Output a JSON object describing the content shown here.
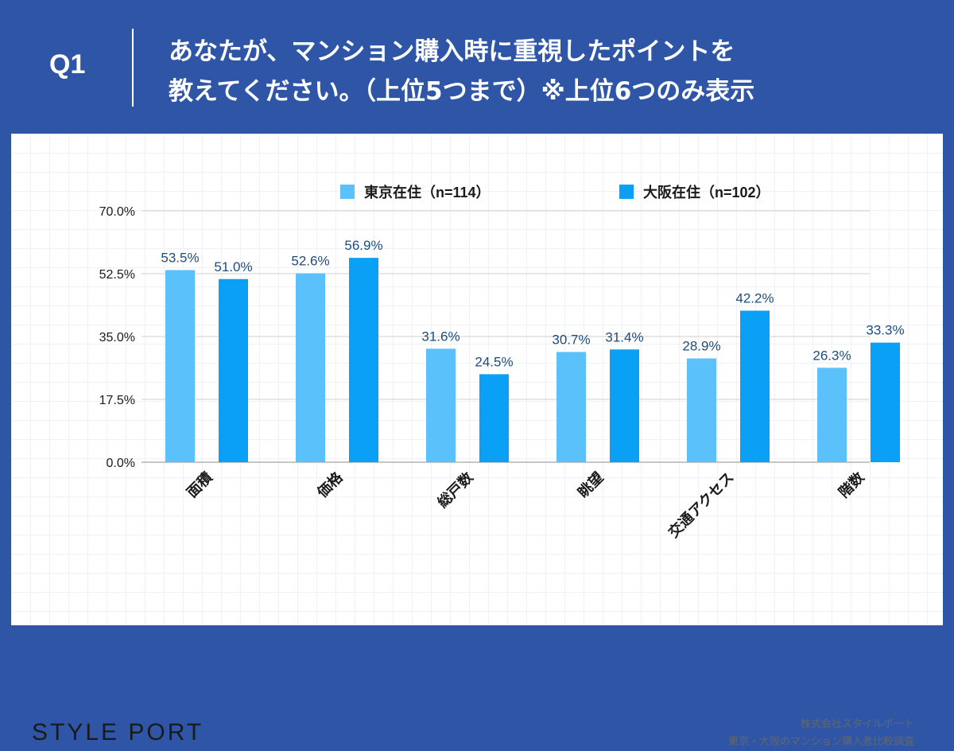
{
  "header": {
    "q_number": "Q1",
    "question_line1": "あなたが、マンション購入時に重視したポイントを",
    "question_line2": "教えてください。（上位5つまで）※上位6つのみ表示"
  },
  "footer": {
    "logo_text": "STYLE PORT",
    "credit_line1": "株式会社スタイルポート",
    "credit_line2": "東京・大阪のマンション購入者比較調査"
  },
  "colors": {
    "background": "#2f56a6",
    "tokyo": "#5bc1fb",
    "osaka": "#0aa0f5",
    "label_text": "#1e4d7a"
  },
  "chart_data": {
    "type": "bar",
    "title": "",
    "xlabel": "",
    "ylabel": "",
    "ylim": [
      0,
      70
    ],
    "yticks": [
      0,
      17.5,
      35,
      52.5,
      70
    ],
    "ytick_labels": [
      "0.0%",
      "17.5%",
      "35.0%",
      "52.5%",
      "70.0%"
    ],
    "grid": true,
    "legend_position": "top",
    "categories": [
      "面積",
      "価格",
      "総戸数",
      "眺望",
      "交通アクセス",
      "階数"
    ],
    "series": [
      {
        "name": "東京在住（n=114）",
        "values": [
          53.5,
          52.6,
          31.6,
          30.7,
          28.9,
          26.3
        ],
        "labels": [
          "53.5%",
          "52.6%",
          "31.6%",
          "30.7%",
          "28.9%",
          "26.3%"
        ]
      },
      {
        "name": "大阪在住（n=102）",
        "values": [
          51.0,
          56.9,
          24.5,
          31.4,
          42.2,
          33.3
        ],
        "labels": [
          "51.0%",
          "56.9%",
          "24.5%",
          "31.4%",
          "42.2%",
          "33.3%"
        ]
      }
    ]
  }
}
